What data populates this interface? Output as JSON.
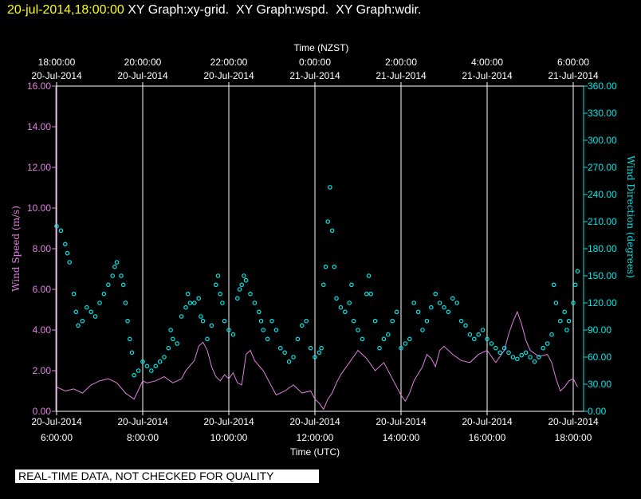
{
  "header": {
    "date": "20-jul-2014,18:00:00",
    "rest": " XY Graph:xy-grid.  XY Graph:wspd.  XY Graph:wdir."
  },
  "footer": {
    "notice": "REAL-TIME DATA, NOT CHECKED FOR QUALITY"
  },
  "colors": {
    "speed": "#e080e0",
    "direction": "#00e8e8",
    "grid": "#ffffff",
    "background": "#000000"
  },
  "chart_data": {
    "type": "line",
    "x_top_label": "Time (NZST)",
    "x_bottom_label": "Time (UTC)",
    "y_left_label": "Wind Speed (m/s)",
    "y_right_label": "Wind Direction (degrees)",
    "x_range_utc_hours": [
      6.0,
      18.2
    ],
    "x_ticks_bottom": [
      {
        "h": 6,
        "time": "6:00:00",
        "date": "20-Jul-2014"
      },
      {
        "h": 8,
        "time": "8:00:00",
        "date": "20-Jul-2014"
      },
      {
        "h": 10,
        "time": "10:00:00",
        "date": "20-Jul-2014"
      },
      {
        "h": 12,
        "time": "12:00:00",
        "date": "20-Jul-2014"
      },
      {
        "h": 14,
        "time": "14:00:00",
        "date": "20-Jul-2014"
      },
      {
        "h": 16,
        "time": "16:00:00",
        "date": "20-Jul-2014"
      },
      {
        "h": 18,
        "time": "18:00:00",
        "date": "20-Jul-2014"
      }
    ],
    "x_ticks_top": [
      {
        "h": 6,
        "time": "18:00:00",
        "date": "20-Jul-2014"
      },
      {
        "h": 8,
        "time": "20:00:00",
        "date": "20-Jul-2014"
      },
      {
        "h": 10,
        "time": "22:00:00",
        "date": "20-Jul-2014"
      },
      {
        "h": 12,
        "time": "0:00:00",
        "date": "21-Jul-2014"
      },
      {
        "h": 14,
        "time": "2:00:00",
        "date": "21-Jul-2014"
      },
      {
        "h": 16,
        "time": "4:00:00",
        "date": "21-Jul-2014"
      },
      {
        "h": 18,
        "time": "6:00:00",
        "date": "21-Jul-2014"
      }
    ],
    "y_left": {
      "range": [
        0,
        16
      ],
      "ticks": [
        "0.00",
        "2.00",
        "4.00",
        "6.00",
        "8.00",
        "10.00",
        "12.00",
        "14.00",
        "16.00"
      ]
    },
    "y_right": {
      "range": [
        0,
        360
      ],
      "ticks": [
        "0.00",
        "30.00",
        "60.00",
        "90.00",
        "120.00",
        "150.00",
        "180.00",
        "210.00",
        "240.00",
        "270.00",
        "300.00",
        "330.00",
        "360.00"
      ]
    },
    "series": [
      {
        "name": "Wind Speed (m/s)",
        "axis": "left",
        "style": "line",
        "points": [
          [
            6.0,
            1.2
          ],
          [
            6.2,
            1.0
          ],
          [
            6.4,
            1.1
          ],
          [
            6.6,
            0.9
          ],
          [
            6.8,
            1.3
          ],
          [
            7.0,
            1.5
          ],
          [
            7.2,
            1.6
          ],
          [
            7.4,
            1.4
          ],
          [
            7.6,
            0.9
          ],
          [
            7.8,
            0.6
          ],
          [
            8.0,
            1.5
          ],
          [
            8.1,
            1.4
          ],
          [
            8.3,
            1.5
          ],
          [
            8.5,
            1.7
          ],
          [
            8.7,
            1.4
          ],
          [
            8.9,
            1.6
          ],
          [
            9.0,
            2.0
          ],
          [
            9.2,
            2.5
          ],
          [
            9.3,
            3.2
          ],
          [
            9.4,
            3.4
          ],
          [
            9.5,
            3.0
          ],
          [
            9.6,
            2.2
          ],
          [
            9.7,
            1.7
          ],
          [
            9.8,
            1.5
          ],
          [
            9.9,
            1.8
          ],
          [
            10.0,
            1.6
          ],
          [
            10.1,
            1.9
          ],
          [
            10.2,
            1.4
          ],
          [
            10.3,
            1.3
          ],
          [
            10.4,
            2.8
          ],
          [
            10.5,
            3.0
          ],
          [
            10.6,
            2.5
          ],
          [
            10.8,
            2.0
          ],
          [
            11.0,
            1.2
          ],
          [
            11.1,
            0.8
          ],
          [
            11.3,
            1.0
          ],
          [
            11.5,
            1.3
          ],
          [
            11.7,
            0.9
          ],
          [
            11.9,
            1.0
          ],
          [
            12.0,
            0.6
          ],
          [
            12.1,
            0.4
          ],
          [
            12.2,
            0.1
          ],
          [
            12.3,
            0.6
          ],
          [
            12.4,
            0.9
          ],
          [
            12.5,
            1.4
          ],
          [
            12.6,
            1.8
          ],
          [
            12.8,
            2.4
          ],
          [
            13.0,
            3.0
          ],
          [
            13.2,
            2.6
          ],
          [
            13.4,
            2.0
          ],
          [
            13.6,
            2.4
          ],
          [
            13.8,
            1.6
          ],
          [
            14.0,
            0.8
          ],
          [
            14.1,
            0.5
          ],
          [
            14.2,
            0.9
          ],
          [
            14.3,
            1.5
          ],
          [
            14.5,
            2.2
          ],
          [
            14.6,
            2.8
          ],
          [
            14.7,
            2.6
          ],
          [
            14.8,
            2.2
          ],
          [
            14.9,
            3.0
          ],
          [
            15.0,
            3.2
          ],
          [
            15.2,
            2.8
          ],
          [
            15.4,
            2.5
          ],
          [
            15.6,
            2.4
          ],
          [
            15.8,
            2.8
          ],
          [
            16.0,
            3.0
          ],
          [
            16.2,
            2.4
          ],
          [
            16.4,
            3.0
          ],
          [
            16.5,
            3.8
          ],
          [
            16.6,
            4.4
          ],
          [
            16.7,
            4.9
          ],
          [
            16.8,
            4.3
          ],
          [
            16.9,
            3.5
          ],
          [
            17.0,
            3.0
          ],
          [
            17.2,
            2.7
          ],
          [
            17.4,
            2.8
          ],
          [
            17.5,
            2.4
          ],
          [
            17.6,
            1.6
          ],
          [
            17.7,
            1.0
          ],
          [
            17.8,
            1.2
          ],
          [
            17.9,
            1.5
          ],
          [
            18.0,
            1.6
          ],
          [
            18.1,
            1.2
          ]
        ]
      },
      {
        "name": "Wind Direction (degrees)",
        "axis": "right",
        "style": "markers",
        "points": [
          [
            6.0,
            205
          ],
          [
            6.1,
            200
          ],
          [
            6.2,
            185
          ],
          [
            6.25,
            175
          ],
          [
            6.3,
            165
          ],
          [
            6.4,
            130
          ],
          [
            6.45,
            110
          ],
          [
            6.5,
            95
          ],
          [
            6.6,
            100
          ],
          [
            6.7,
            115
          ],
          [
            6.8,
            110
          ],
          [
            6.9,
            105
          ],
          [
            7.0,
            120
          ],
          [
            7.1,
            130
          ],
          [
            7.2,
            140
          ],
          [
            7.3,
            150
          ],
          [
            7.35,
            160
          ],
          [
            7.4,
            165
          ],
          [
            7.5,
            150
          ],
          [
            7.55,
            140
          ],
          [
            7.6,
            120
          ],
          [
            7.65,
            100
          ],
          [
            7.7,
            80
          ],
          [
            7.75,
            65
          ],
          [
            7.8,
            40
          ],
          [
            7.9,
            45
          ],
          [
            8.0,
            55
          ],
          [
            8.1,
            50
          ],
          [
            8.2,
            45
          ],
          [
            8.3,
            50
          ],
          [
            8.4,
            55
          ],
          [
            8.5,
            60
          ],
          [
            8.6,
            70
          ],
          [
            8.65,
            90
          ],
          [
            8.7,
            80
          ],
          [
            8.8,
            75
          ],
          [
            8.9,
            105
          ],
          [
            9.0,
            115
          ],
          [
            9.05,
            130
          ],
          [
            9.1,
            120
          ],
          [
            9.2,
            120
          ],
          [
            9.3,
            125
          ],
          [
            9.35,
            105
          ],
          [
            9.4,
            100
          ],
          [
            9.5,
            80
          ],
          [
            9.6,
            95
          ],
          [
            9.7,
            140
          ],
          [
            9.75,
            150
          ],
          [
            9.8,
            130
          ],
          [
            9.85,
            120
          ],
          [
            9.9,
            100
          ],
          [
            10.0,
            90
          ],
          [
            10.1,
            85
          ],
          [
            10.2,
            125
          ],
          [
            10.25,
            135
          ],
          [
            10.3,
            140
          ],
          [
            10.35,
            150
          ],
          [
            10.4,
            145
          ],
          [
            10.5,
            130
          ],
          [
            10.6,
            120
          ],
          [
            10.7,
            110
          ],
          [
            10.75,
            100
          ],
          [
            10.8,
            90
          ],
          [
            10.9,
            80
          ],
          [
            11.0,
            100
          ],
          [
            11.1,
            90
          ],
          [
            11.2,
            70
          ],
          [
            11.3,
            65
          ],
          [
            11.4,
            55
          ],
          [
            11.5,
            60
          ],
          [
            11.6,
            80
          ],
          [
            11.7,
            95
          ],
          [
            11.8,
            100
          ],
          [
            11.9,
            70
          ],
          [
            12.0,
            60
          ],
          [
            12.1,
            65
          ],
          [
            12.15,
            70
          ],
          [
            12.2,
            140
          ],
          [
            12.25,
            160
          ],
          [
            12.3,
            210
          ],
          [
            12.35,
            248
          ],
          [
            12.4,
            200
          ],
          [
            12.45,
            160
          ],
          [
            12.5,
            125
          ],
          [
            12.6,
            115
          ],
          [
            12.7,
            110
          ],
          [
            12.8,
            120
          ],
          [
            12.85,
            140
          ],
          [
            12.9,
            100
          ],
          [
            13.0,
            90
          ],
          [
            13.1,
            80
          ],
          [
            13.2,
            130
          ],
          [
            13.25,
            150
          ],
          [
            13.3,
            130
          ],
          [
            13.4,
            100
          ],
          [
            13.5,
            70
          ],
          [
            13.6,
            80
          ],
          [
            13.7,
            85
          ],
          [
            13.8,
            100
          ],
          [
            13.9,
            110
          ],
          [
            14.0,
            70
          ],
          [
            14.1,
            75
          ],
          [
            14.2,
            80
          ],
          [
            14.3,
            120
          ],
          [
            14.4,
            110
          ],
          [
            14.5,
            90
          ],
          [
            14.6,
            100
          ],
          [
            14.7,
            115
          ],
          [
            14.8,
            130
          ],
          [
            14.9,
            120
          ],
          [
            15.0,
            115
          ],
          [
            15.1,
            110
          ],
          [
            15.2,
            125
          ],
          [
            15.3,
            120
          ],
          [
            15.4,
            100
          ],
          [
            15.5,
            95
          ],
          [
            15.6,
            85
          ],
          [
            15.7,
            80
          ],
          [
            15.8,
            85
          ],
          [
            15.9,
            90
          ],
          [
            16.0,
            80
          ],
          [
            16.1,
            75
          ],
          [
            16.2,
            70
          ],
          [
            16.3,
            65
          ],
          [
            16.4,
            70
          ],
          [
            16.5,
            65
          ],
          [
            16.6,
            60
          ],
          [
            16.7,
            58
          ],
          [
            16.8,
            62
          ],
          [
            16.9,
            65
          ],
          [
            17.0,
            60
          ],
          [
            17.1,
            55
          ],
          [
            17.2,
            60
          ],
          [
            17.3,
            70
          ],
          [
            17.4,
            75
          ],
          [
            17.5,
            85
          ],
          [
            17.55,
            140
          ],
          [
            17.6,
            120
          ],
          [
            17.7,
            100
          ],
          [
            17.8,
            110
          ],
          [
            17.85,
            90
          ],
          [
            17.9,
            100
          ],
          [
            18.0,
            120
          ],
          [
            18.05,
            140
          ],
          [
            18.1,
            155
          ]
        ]
      }
    ]
  }
}
